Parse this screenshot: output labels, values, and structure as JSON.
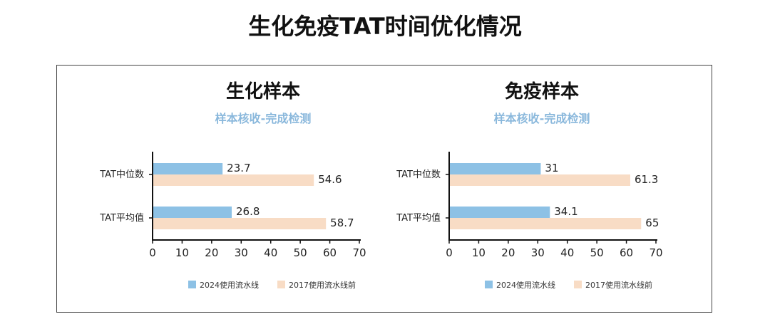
{
  "title": "生化免疫TAT时间优化情况",
  "colors": {
    "series_2024": "#8dc1e5",
    "series_2017": "#f8dcc5"
  },
  "chart_data": [
    {
      "type": "bar",
      "orientation": "horizontal",
      "title": "生化样本",
      "subtitle": "样本核收-完成检测",
      "categories": [
        "TAT中位数",
        "TAT平均值"
      ],
      "series": [
        {
          "name": "2024使用流水线",
          "values": [
            23.7,
            26.8
          ]
        },
        {
          "name": "2017使用流水线前",
          "values": [
            54.6,
            58.7
          ]
        }
      ],
      "xlim": [
        0,
        70
      ],
      "xticks": [
        "0",
        "10",
        "20",
        "30",
        "40",
        "50",
        "60",
        "70"
      ],
      "legend": "bottom"
    },
    {
      "type": "bar",
      "orientation": "horizontal",
      "title": "免疫样本",
      "subtitle": "样本核收-完成检测",
      "categories": [
        "TAT中位数",
        "TAT平均值"
      ],
      "series": [
        {
          "name": "2024使用流水线",
          "values": [
            31,
            34.1
          ]
        },
        {
          "name": "2017使用流水线前",
          "values": [
            61.3,
            65
          ]
        }
      ],
      "xlim": [
        0,
        70
      ],
      "xticks": [
        "0",
        "10",
        "20",
        "30",
        "40",
        "50",
        "60",
        "70"
      ],
      "legend": "bottom"
    }
  ]
}
